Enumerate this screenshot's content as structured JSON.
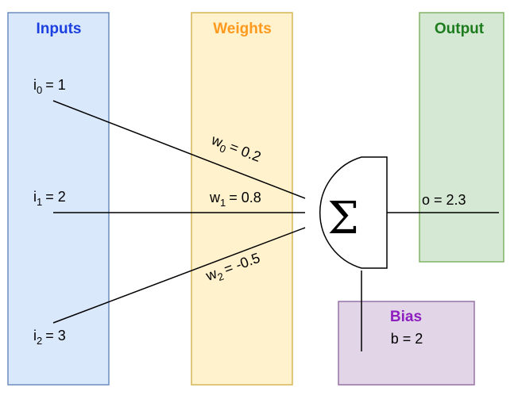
{
  "panels": {
    "inputs": {
      "title": "Inputs",
      "fill": "#dae8fc",
      "stroke": "#6c8ebf",
      "title_color": "#1c3fe0"
    },
    "weights": {
      "title": "Weights",
      "fill": "#fff2cc",
      "stroke": "#d6b656",
      "title_color": "#ff9a1f"
    },
    "output": {
      "title": "Output",
      "fill": "#d5e8d4",
      "stroke": "#82b366",
      "title_color": "#1d7c1d"
    },
    "bias": {
      "title": "Bias",
      "fill": "#e1d5e7",
      "stroke": "#9673a6",
      "title_color": "#8e1fbf",
      "value_text": "b = 2"
    }
  },
  "inputs": [
    {
      "var": "i",
      "sub": "0",
      "value": "= 1"
    },
    {
      "var": "i",
      "sub": "1",
      "value": "= 2"
    },
    {
      "var": "i",
      "sub": "2",
      "value": "= 3"
    }
  ],
  "weights": [
    {
      "var": "w",
      "sub": "0",
      "value": "= 0.2"
    },
    {
      "var": "w",
      "sub": "1",
      "value": "= 0.8"
    },
    {
      "var": "w",
      "sub": "2",
      "value": "= -0.5"
    }
  ],
  "neuron": {
    "symbol": "Σ"
  },
  "output": {
    "text": "o = 2.3"
  }
}
